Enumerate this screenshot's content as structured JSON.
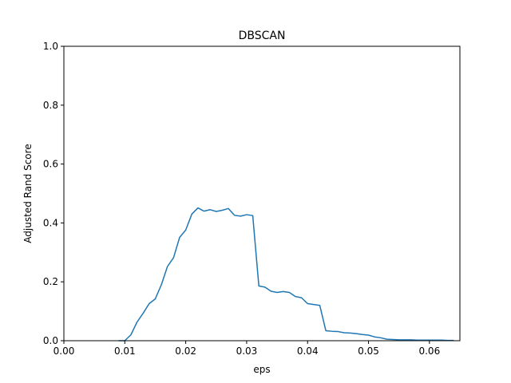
{
  "chart_data": {
    "type": "line",
    "title": "DBSCAN",
    "xlabel": "eps",
    "ylabel": "Adjusted Rand Score",
    "xlim": [
      0.0,
      0.065
    ],
    "ylim": [
      0.0,
      1.0
    ],
    "xticks": [
      0.0,
      0.01,
      0.02,
      0.03,
      0.04,
      0.05,
      0.06
    ],
    "xtick_labels": [
      "0.00",
      "0.01",
      "0.02",
      "0.03",
      "0.04",
      "0.05",
      "0.06"
    ],
    "yticks": [
      0.0,
      0.2,
      0.4,
      0.6,
      0.8,
      1.0
    ],
    "ytick_labels": [
      "0.0",
      "0.2",
      "0.4",
      "0.6",
      "0.8",
      "1.0"
    ],
    "grid": false,
    "series": [
      {
        "color": "#1f77b4",
        "x": [
          0.009,
          0.01,
          0.011,
          0.012,
          0.013,
          0.014,
          0.015,
          0.016,
          0.017,
          0.018,
          0.019,
          0.02,
          0.021,
          0.022,
          0.023,
          0.024,
          0.025,
          0.026,
          0.027,
          0.028,
          0.029,
          0.03,
          0.031,
          0.032,
          0.033,
          0.034,
          0.035,
          0.036,
          0.037,
          0.038,
          0.039,
          0.04,
          0.041,
          0.042,
          0.043,
          0.044,
          0.045,
          0.046,
          0.047,
          0.048,
          0.049,
          0.05,
          0.051,
          0.052,
          0.053,
          0.054,
          0.055,
          0.056,
          0.057,
          0.058,
          0.059,
          0.06,
          0.061,
          0.062,
          0.063,
          0.064
        ],
        "y": [
          0.0,
          0.0,
          0.02,
          0.063,
          0.093,
          0.126,
          0.142,
          0.19,
          0.252,
          0.282,
          0.351,
          0.376,
          0.43,
          0.451,
          0.44,
          0.445,
          0.439,
          0.443,
          0.449,
          0.426,
          0.423,
          0.428,
          0.425,
          0.186,
          0.182,
          0.168,
          0.164,
          0.167,
          0.164,
          0.15,
          0.146,
          0.126,
          0.123,
          0.12,
          0.034,
          0.032,
          0.031,
          0.027,
          0.026,
          0.024,
          0.021,
          0.019,
          0.013,
          0.01,
          0.005,
          0.004,
          0.003,
          0.003,
          0.003,
          0.002,
          0.002,
          0.002,
          0.002,
          0.002,
          0.001,
          0.001
        ]
      }
    ]
  }
}
